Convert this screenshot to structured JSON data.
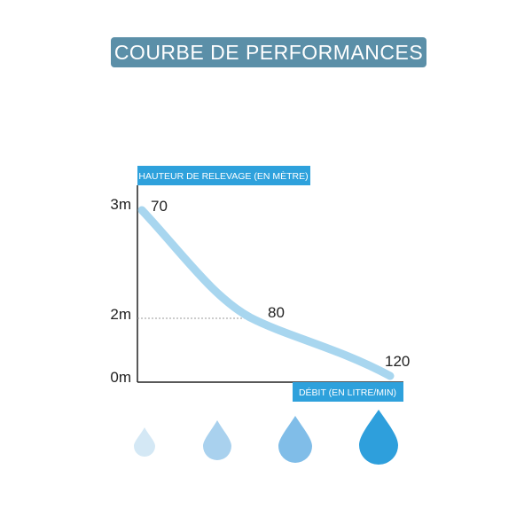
{
  "title": "COURBE DE PERFORMANCES",
  "colors": {
    "banner": "#5b8fa8",
    "label_box": "#2ea1dc",
    "curve": "#a8d6ef",
    "axis": "#222222",
    "drops": [
      "#d4e8f5",
      "#a9d1ee",
      "#80bde8",
      "#2e9fdc"
    ]
  },
  "chart_data": {
    "type": "line",
    "ylabel": "HAUTEUR DE RELEVAGE (EN MÈTRE)",
    "xlabel": "DÉBIT (EN LITRE/MIN)",
    "y_ticks": [
      {
        "label": "3m",
        "value": 3
      },
      {
        "label": "2m",
        "value": 2
      },
      {
        "label": "0m",
        "value": 0
      }
    ],
    "series": [
      {
        "points": [
          {
            "x": 70,
            "y": 3
          },
          {
            "x": 80,
            "y": 2
          },
          {
            "x": 120,
            "y": 0
          }
        ]
      }
    ],
    "point_labels": [
      "70",
      "80",
      "120"
    ],
    "ylim": [
      0,
      3
    ],
    "grid": false,
    "reference_line_y": 2
  },
  "drops_count": 4
}
